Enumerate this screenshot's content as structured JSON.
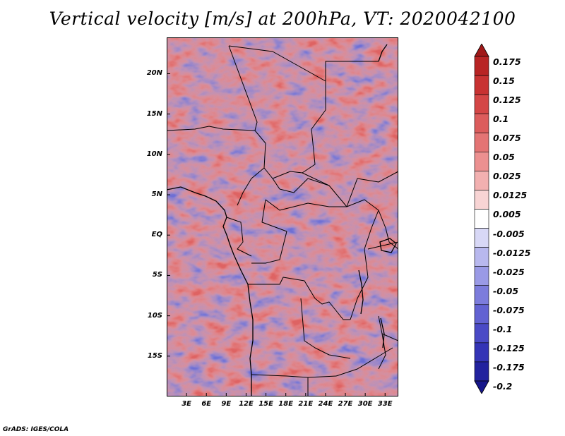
{
  "title": "Vertical velocity [m/s] at 200hPa, VT: 2020042100",
  "credit": "GrADS: IGES/COLA",
  "lat_axis": {
    "labels": [
      "20N",
      "15N",
      "10N",
      "5N",
      "EQ",
      "5S",
      "10S",
      "15S"
    ],
    "values": [
      20,
      15,
      10,
      5,
      0,
      -5,
      -10,
      -15
    ],
    "range": [
      -20,
      24.5
    ]
  },
  "lon_axis": {
    "labels": [
      "3E",
      "6E",
      "9E",
      "12E",
      "15E",
      "18E",
      "21E",
      "24E",
      "27E",
      "30E",
      "33E"
    ],
    "values": [
      3,
      6,
      9,
      12,
      15,
      18,
      21,
      24,
      27,
      30,
      33
    ],
    "range": [
      0,
      35
    ]
  },
  "colorbar": {
    "levels": [
      "0.175",
      "0.15",
      "0.125",
      "0.1",
      "0.075",
      "0.05",
      "0.025",
      "0.0125",
      "0.005",
      "-0.005",
      "-0.0125",
      "-0.025",
      "-0.05",
      "-0.075",
      "-0.1",
      "-0.125",
      "-0.175",
      "-0.2"
    ],
    "colors": [
      "#a01818",
      "#b82424",
      "#c83232",
      "#d44646",
      "#dc5c5c",
      "#e47474",
      "#ec9090",
      "#f2b0b0",
      "#f8d4d4",
      "#ffffff",
      "#d8d8f6",
      "#b8b8ee",
      "#9a9ae6",
      "#7c7cdc",
      "#6262d2",
      "#4a4ac6",
      "#3434b6",
      "#22229e",
      "#16168a"
    ]
  }
}
